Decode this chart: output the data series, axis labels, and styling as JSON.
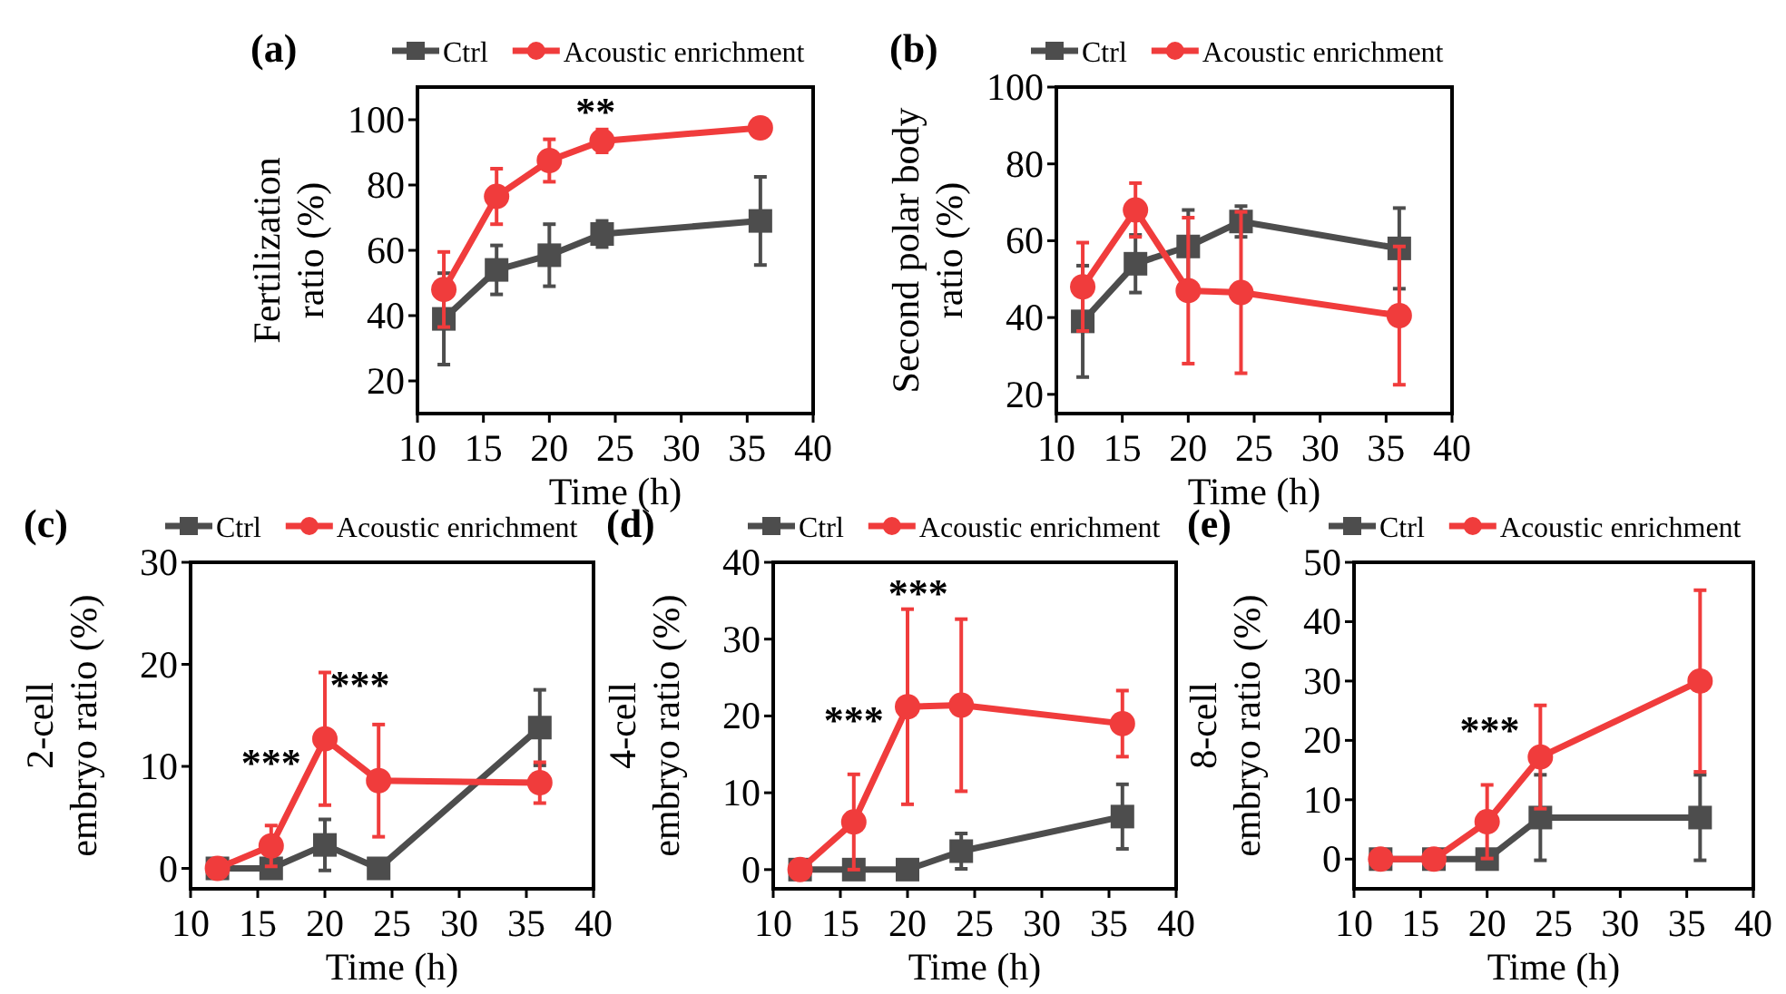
{
  "chart_data": [
    {
      "type": "line",
      "title": "(a)",
      "xlabel": "Time (h)",
      "ylabel": "Fertilization ratio (%)",
      "x": [
        12,
        16,
        20,
        24,
        36
      ],
      "xlim": [
        10,
        40
      ],
      "xticks": [
        10,
        15,
        20,
        25,
        30,
        35,
        40
      ],
      "ylim": [
        10,
        110
      ],
      "yticks": [
        20,
        40,
        60,
        80,
        100
      ],
      "legend": "top",
      "annotations": [
        "**"
      ],
      "series": [
        {
          "name": "Ctrl",
          "color": "#4d4d4d",
          "marker": "square",
          "values": [
            39,
            54,
            58.5,
            65,
            69
          ],
          "errors": [
            14,
            7.5,
            9.5,
            4,
            13.5
          ]
        },
        {
          "name": "Acoustic enrichment",
          "color": "#f03c3c",
          "marker": "circle",
          "values": [
            48,
            76.5,
            87.5,
            93.5,
            97.5
          ],
          "errors": [
            11.5,
            8.5,
            6.5,
            3.5,
            1
          ]
        }
      ]
    },
    {
      "type": "line",
      "title": "(b)",
      "xlabel": "Time (h)",
      "ylabel": "Second polar body ratio (%)",
      "x": [
        12,
        16,
        20,
        24,
        36
      ],
      "xlim": [
        10,
        40
      ],
      "xticks": [
        10,
        15,
        20,
        25,
        30,
        35,
        40
      ],
      "ylim": [
        15,
        100
      ],
      "yticks": [
        20,
        40,
        60,
        80,
        100
      ],
      "legend": "top",
      "series": [
        {
          "name": "Ctrl",
          "color": "#4d4d4d",
          "marker": "square",
          "values": [
            39,
            54,
            58.5,
            65,
            58
          ],
          "errors": [
            14.5,
            7.5,
            9.5,
            4,
            10.5
          ]
        },
        {
          "name": "Acoustic enrichment",
          "color": "#f03c3c",
          "marker": "circle",
          "values": [
            48,
            68,
            47,
            46.5,
            40.5
          ],
          "errors": [
            11.5,
            7,
            19,
            21,
            18
          ]
        }
      ]
    },
    {
      "type": "line",
      "title": "(c)",
      "xlabel": "Time (h)",
      "ylabel": "2-cell embryo ratio (%)",
      "x": [
        12,
        16,
        20,
        24,
        36
      ],
      "xlim": [
        10,
        40
      ],
      "xticks": [
        10,
        15,
        20,
        25,
        30,
        35,
        40
      ],
      "ylim": [
        -2,
        30
      ],
      "yticks": [
        0,
        10,
        20,
        30
      ],
      "legend": "top",
      "annotations": [
        "***",
        "***"
      ],
      "series": [
        {
          "name": "Ctrl",
          "color": "#4d4d4d",
          "marker": "square",
          "values": [
            0,
            0,
            2.3,
            0,
            13.8
          ],
          "errors": [
            null,
            null,
            2.5,
            null,
            3.7
          ]
        },
        {
          "name": "Acoustic enrichment",
          "color": "#f03c3c",
          "marker": "circle",
          "values": [
            0,
            2.2,
            12.7,
            8.6,
            8.4
          ],
          "errors": [
            null,
            2,
            6.5,
            5.5,
            2
          ]
        }
      ]
    },
    {
      "type": "line",
      "title": "(d)",
      "xlabel": "Time (h)",
      "ylabel": "4-cell embryo ratio (%)",
      "x": [
        12,
        16,
        20,
        24,
        36
      ],
      "xlim": [
        10,
        40
      ],
      "xticks": [
        10,
        15,
        20,
        25,
        30,
        35,
        40
      ],
      "ylim": [
        -2.5,
        40
      ],
      "yticks": [
        0,
        10,
        20,
        30,
        40
      ],
      "legend": "top",
      "annotations": [
        "***",
        "***"
      ],
      "series": [
        {
          "name": "Ctrl",
          "color": "#4d4d4d",
          "marker": "square",
          "values": [
            0,
            0,
            0,
            2.4,
            6.9
          ],
          "errors": [
            null,
            null,
            null,
            2.3,
            4.2
          ]
        },
        {
          "name": "Acoustic enrichment",
          "color": "#f03c3c",
          "marker": "circle",
          "values": [
            0,
            6.2,
            21.2,
            21.4,
            19
          ],
          "errors": [
            null,
            6.2,
            12.7,
            11.2,
            4.3
          ]
        }
      ]
    },
    {
      "type": "line",
      "title": "(e)",
      "xlabel": "Time (h)",
      "ylabel": "8-cell embryo ratio (%)",
      "x": [
        12,
        16,
        20,
        24,
        36
      ],
      "xlim": [
        10,
        40
      ],
      "xticks": [
        10,
        15,
        20,
        25,
        30,
        35,
        40
      ],
      "ylim": [
        -5,
        50
      ],
      "yticks": [
        0,
        10,
        20,
        30,
        40,
        50
      ],
      "legend": "top",
      "annotations": [
        "***"
      ],
      "series": [
        {
          "name": "Ctrl",
          "color": "#4d4d4d",
          "marker": "square",
          "values": [
            0,
            0,
            0,
            7,
            7
          ],
          "errors": [
            null,
            null,
            null,
            7.2,
            7.2
          ]
        },
        {
          "name": "Acoustic enrichment",
          "color": "#f03c3c",
          "marker": "circle",
          "values": [
            0,
            0,
            6.3,
            17.2,
            30
          ],
          "errors": [
            null,
            null,
            6.2,
            8.7,
            15.3
          ]
        }
      ]
    }
  ]
}
